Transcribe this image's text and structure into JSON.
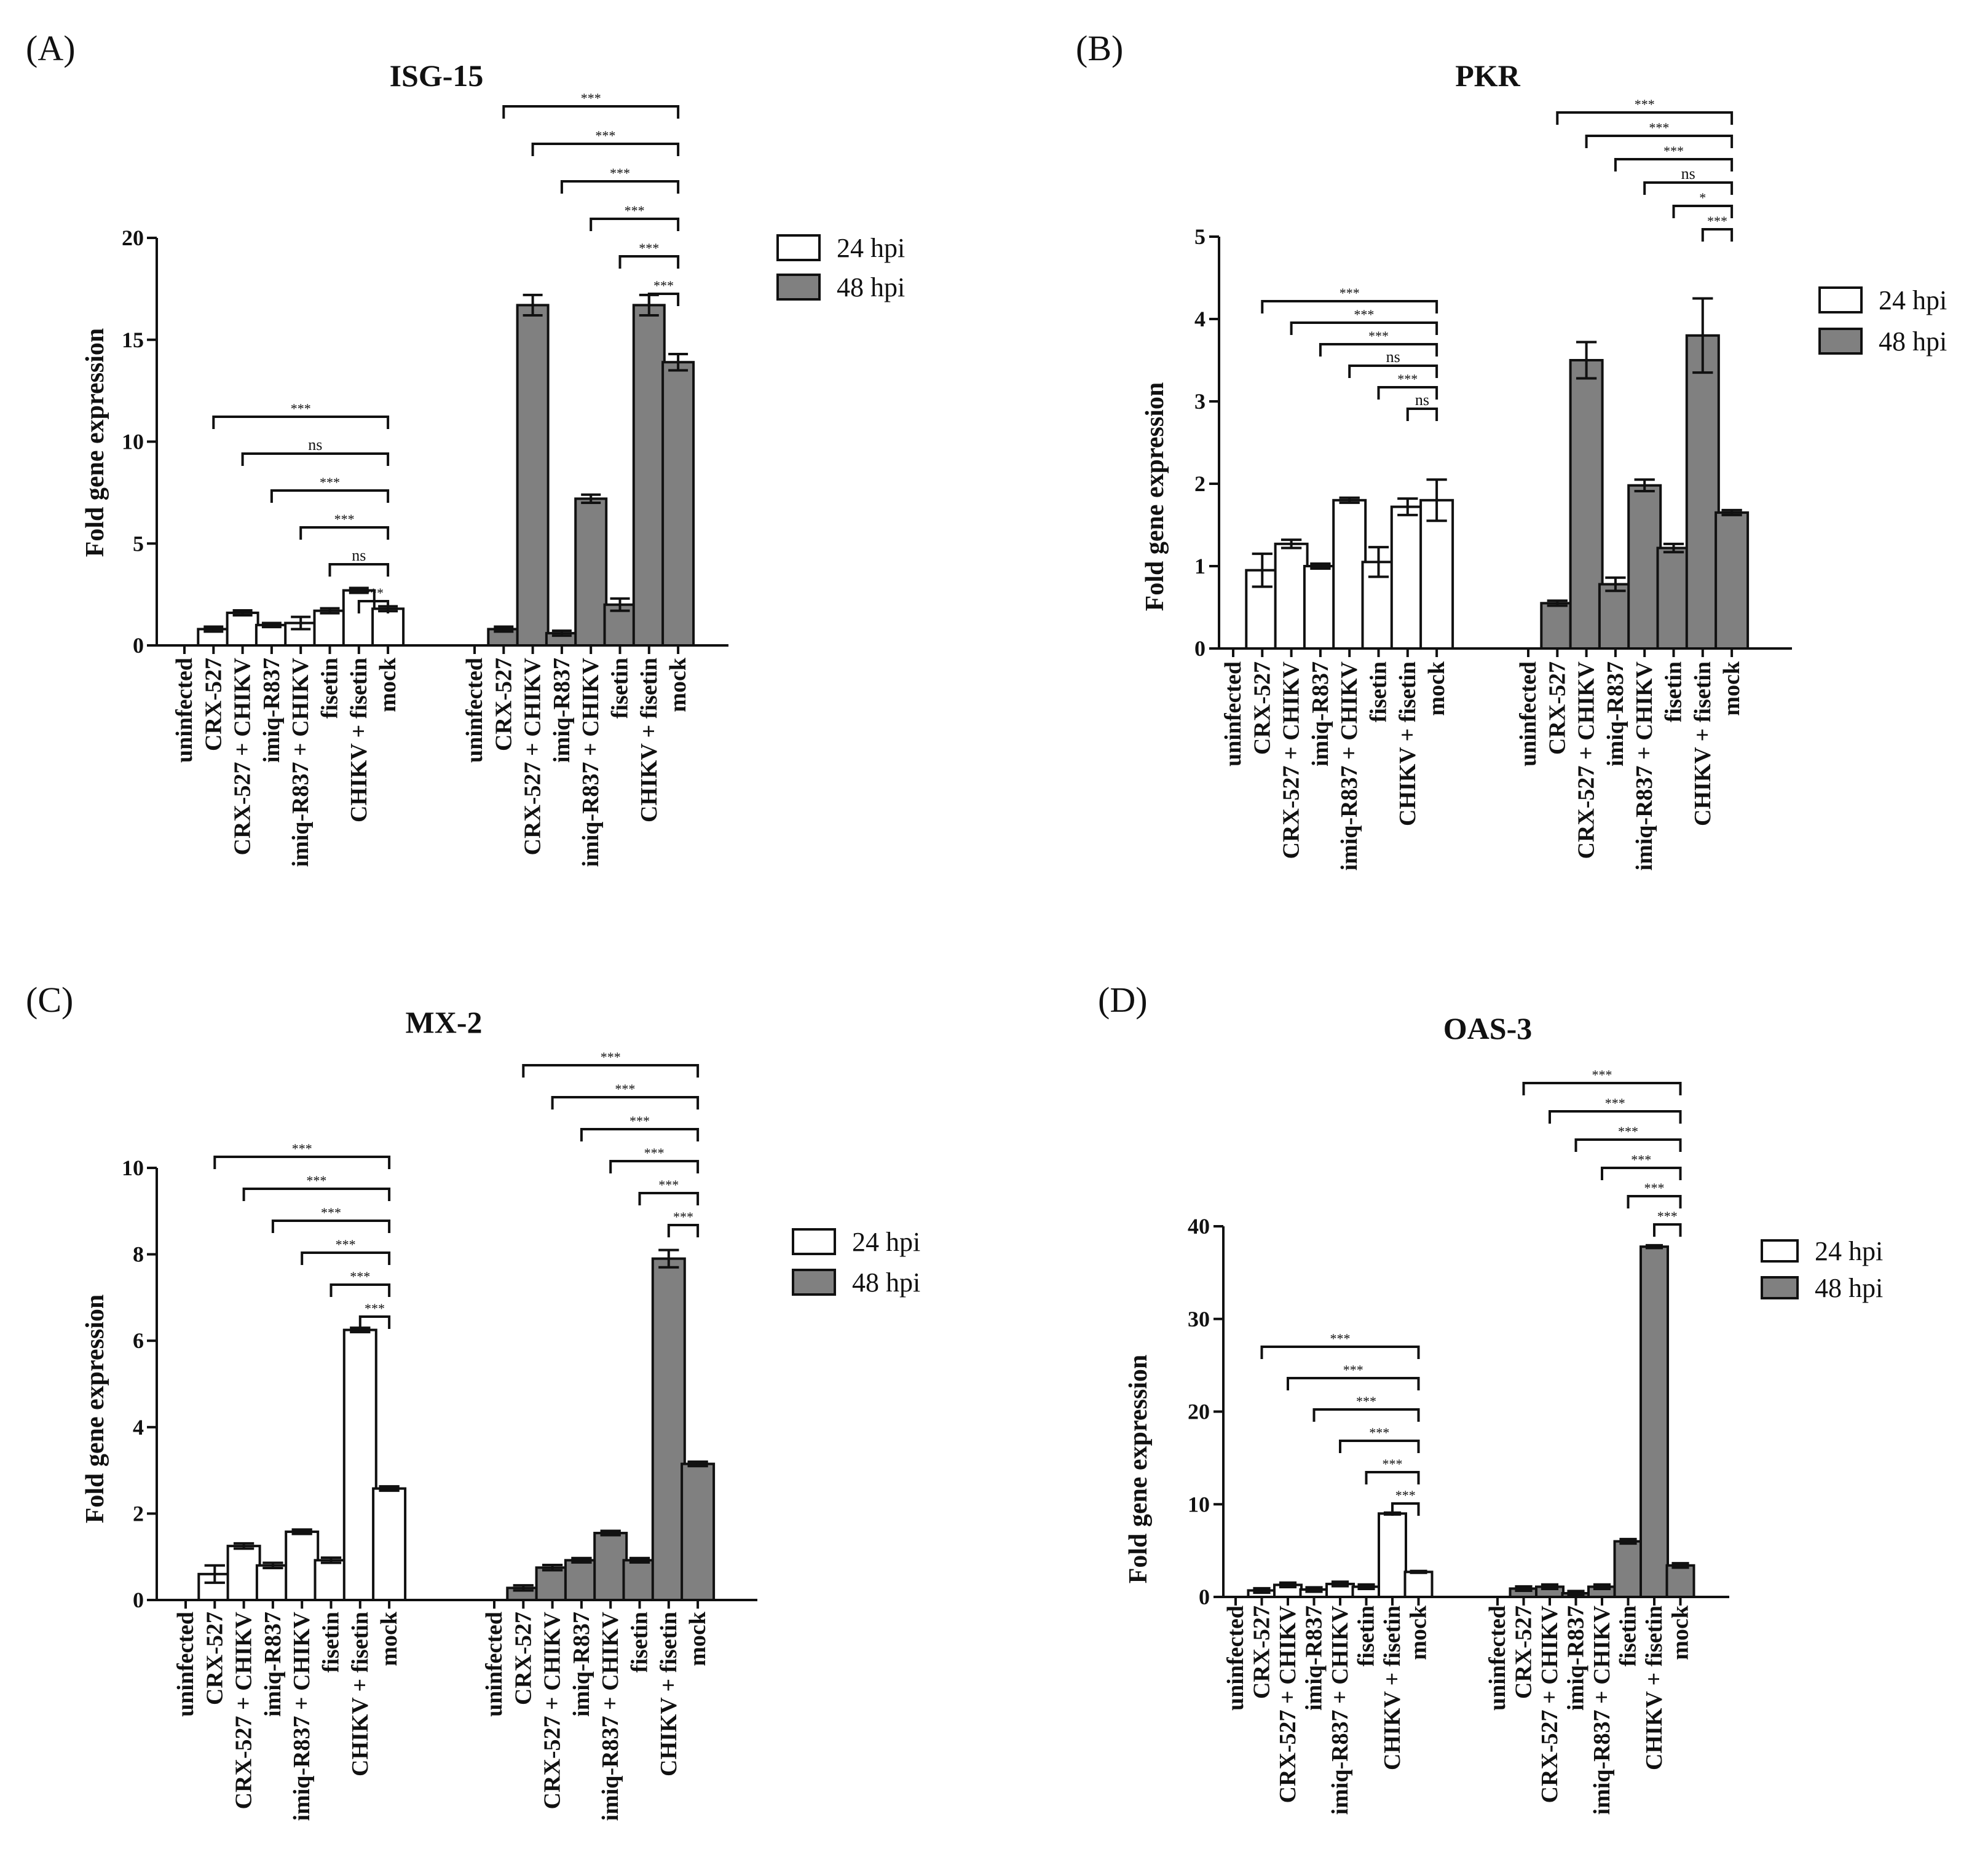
{
  "colors": {
    "hpi24": "#ffffff",
    "hpi48": "#808080",
    "stroke": "#111111"
  },
  "legend": {
    "hpi24": "24 hpi",
    "hpi48": "48 hpi"
  },
  "ylabel": "Fold gene expression",
  "panels": [
    {
      "letter": "(A)",
      "chart_data": {
        "type": "bar",
        "title": "ISG-15",
        "ylabel": "Fold gene expression",
        "ylim": [
          0,
          20
        ],
        "yticks": [
          0,
          5,
          10,
          15,
          20
        ],
        "categories": [
          "uninfected",
          "CRX-527",
          "CRX-527 + CHIKV",
          "imiq-R837",
          "imiq-R837 + CHIKV",
          "fisetin",
          "CHIKV + fisetin",
          "mock"
        ],
        "series": [
          {
            "name": "24 hpi",
            "values": [
              0,
              0.8,
              1.6,
              1.0,
              1.1,
              1.7,
              2.7,
              1.8
            ],
            "errors": [
              0,
              0,
              0,
              0.1,
              0.3,
              0,
              0,
              0
            ]
          },
          {
            "name": "48 hpi",
            "values": [
              0,
              0.8,
              16.7,
              0.6,
              7.2,
              2.0,
              16.7,
              13.9
            ],
            "errors": [
              0,
              0,
              0.5,
              0,
              0.2,
              0.3,
              0.5,
              0.4
            ]
          }
        ],
        "significance": [
          [
            {
              "from": 1,
              "to": 7,
              "label": "***"
            },
            {
              "from": 2,
              "to": 7,
              "label": "ns"
            },
            {
              "from": 3,
              "to": 7,
              "label": "***"
            },
            {
              "from": 4,
              "to": 7,
              "label": "***"
            },
            {
              "from": 5,
              "to": 7,
              "label": "ns"
            },
            {
              "from": 6,
              "to": 7,
              "label": "***"
            }
          ],
          [
            {
              "from": 1,
              "to": 7,
              "label": "***"
            },
            {
              "from": 2,
              "to": 7,
              "label": "***"
            },
            {
              "from": 3,
              "to": 7,
              "label": "***"
            },
            {
              "from": 4,
              "to": 7,
              "label": "***"
            },
            {
              "from": 5,
              "to": 7,
              "label": "***"
            },
            {
              "from": 6,
              "to": 7,
              "label": "***"
            }
          ]
        ]
      }
    },
    {
      "letter": "(B)",
      "chart_data": {
        "type": "bar",
        "title": "PKR",
        "ylabel": "Fold gene expression",
        "ylim": [
          0,
          5
        ],
        "yticks": [
          0,
          1,
          2,
          3,
          4,
          5
        ],
        "categories": [
          "uninfected",
          "CRX-527",
          "CRX-527 + CHIKV",
          "imiq-R837",
          "imiq-R837 + CHIKV",
          "fisetin",
          "CHIKV + fisetin",
          "mock"
        ],
        "series": [
          {
            "name": "24 hpi",
            "values": [
              0,
              0.95,
              1.27,
              1.0,
              1.8,
              1.05,
              1.72,
              1.8
            ],
            "errors": [
              0,
              0.2,
              0.05,
              0.03,
              0.03,
              0.18,
              0.1,
              0.25
            ]
          },
          {
            "name": "48 hpi",
            "values": [
              0,
              0.55,
              3.5,
              0.78,
              1.98,
              1.22,
              3.8,
              1.65
            ],
            "errors": [
              0,
              0,
              0.22,
              0.08,
              0.07,
              0.05,
              0.45,
              0
            ]
          }
        ],
        "significance": [
          [
            {
              "from": 1,
              "to": 7,
              "label": "***"
            },
            {
              "from": 2,
              "to": 7,
              "label": "***"
            },
            {
              "from": 3,
              "to": 7,
              "label": "***"
            },
            {
              "from": 4,
              "to": 7,
              "label": "ns"
            },
            {
              "from": 5,
              "to": 7,
              "label": "***"
            },
            {
              "from": 6,
              "to": 7,
              "label": "ns"
            }
          ],
          [
            {
              "from": 1,
              "to": 7,
              "label": "***"
            },
            {
              "from": 2,
              "to": 7,
              "label": "***"
            },
            {
              "from": 3,
              "to": 7,
              "label": "***"
            },
            {
              "from": 4,
              "to": 7,
              "label": "ns"
            },
            {
              "from": 5,
              "to": 7,
              "label": "*"
            },
            {
              "from": 6,
              "to": 7,
              "label": "***"
            }
          ]
        ]
      }
    },
    {
      "letter": "(C)",
      "chart_data": {
        "type": "bar",
        "title": "MX-2",
        "ylabel": "Fold gene expression",
        "ylim": [
          0,
          10
        ],
        "yticks": [
          0,
          2,
          4,
          6,
          8,
          10
        ],
        "categories": [
          "uninfected",
          "CRX-527",
          "CRX-527 + CHIKV",
          "imiq-R837",
          "imiq-R837 + CHIKV",
          "fisetin",
          "CHIKV + fisetin",
          "mock"
        ],
        "series": [
          {
            "name": "24 hpi",
            "values": [
              0,
              0.6,
              1.25,
              0.8,
              1.58,
              0.92,
              6.25,
              2.58
            ],
            "errors": [
              0,
              0.2,
              0,
              0,
              0.05,
              0,
              0.05,
              0.05
            ]
          },
          {
            "name": "48 hpi",
            "values": [
              0,
              0.28,
              0.75,
              0.92,
              1.55,
              0.92,
              7.9,
              3.15
            ],
            "errors": [
              0,
              0,
              0,
              0.05,
              0.05,
              0.05,
              0.2,
              0.05
            ]
          }
        ],
        "significance": [
          [
            {
              "from": 1,
              "to": 7,
              "label": "***"
            },
            {
              "from": 2,
              "to": 7,
              "label": "***"
            },
            {
              "from": 3,
              "to": 7,
              "label": "***"
            },
            {
              "from": 4,
              "to": 7,
              "label": "***"
            },
            {
              "from": 5,
              "to": 7,
              "label": "***"
            },
            {
              "from": 6,
              "to": 7,
              "label": "***"
            }
          ],
          [
            {
              "from": 1,
              "to": 7,
              "label": "***"
            },
            {
              "from": 2,
              "to": 7,
              "label": "***"
            },
            {
              "from": 3,
              "to": 7,
              "label": "***"
            },
            {
              "from": 4,
              "to": 7,
              "label": "***"
            },
            {
              "from": 5,
              "to": 7,
              "label": "***"
            },
            {
              "from": 6,
              "to": 7,
              "label": "***"
            }
          ]
        ]
      }
    },
    {
      "letter": "(D)",
      "chart_data": {
        "type": "bar",
        "title": "OAS-3",
        "ylabel": "Fold gene expression",
        "ylim": [
          0,
          40
        ],
        "yticks": [
          0,
          10,
          20,
          30,
          40
        ],
        "categories": [
          "uninfected",
          "CRX-527",
          "CRX-527 + CHIKV",
          "imiq-R837",
          "imiq-R837 + CHIKV",
          "fisetin",
          "CHIKV + fisetin",
          "mock"
        ],
        "series": [
          {
            "name": "24 hpi",
            "values": [
              0,
              0.7,
              1.3,
              0.8,
              1.4,
              1.1,
              9.0,
              2.7
            ],
            "errors": [
              0,
              0,
              0,
              0,
              0,
              0,
              0.1,
              0.1
            ]
          },
          {
            "name": "48 hpi",
            "values": [
              0,
              0.9,
              1.1,
              0.4,
              1.1,
              6.0,
              37.8,
              3.4
            ],
            "errors": [
              0,
              0,
              0,
              0,
              0,
              0,
              0.15,
              0
            ]
          }
        ],
        "significance": [
          [
            {
              "from": 1,
              "to": 7,
              "label": "***"
            },
            {
              "from": 2,
              "to": 7,
              "label": "***"
            },
            {
              "from": 3,
              "to": 7,
              "label": "***"
            },
            {
              "from": 4,
              "to": 7,
              "label": "***"
            },
            {
              "from": 5,
              "to": 7,
              "label": "***"
            },
            {
              "from": 6,
              "to": 7,
              "label": "***"
            }
          ],
          [
            {
              "from": 1,
              "to": 7,
              "label": "***"
            },
            {
              "from": 2,
              "to": 7,
              "label": "***"
            },
            {
              "from": 3,
              "to": 7,
              "label": "***"
            },
            {
              "from": 4,
              "to": 7,
              "label": "***"
            },
            {
              "from": 5,
              "to": 7,
              "label": "***"
            },
            {
              "from": 6,
              "to": 7,
              "label": "***"
            }
          ]
        ]
      }
    }
  ]
}
